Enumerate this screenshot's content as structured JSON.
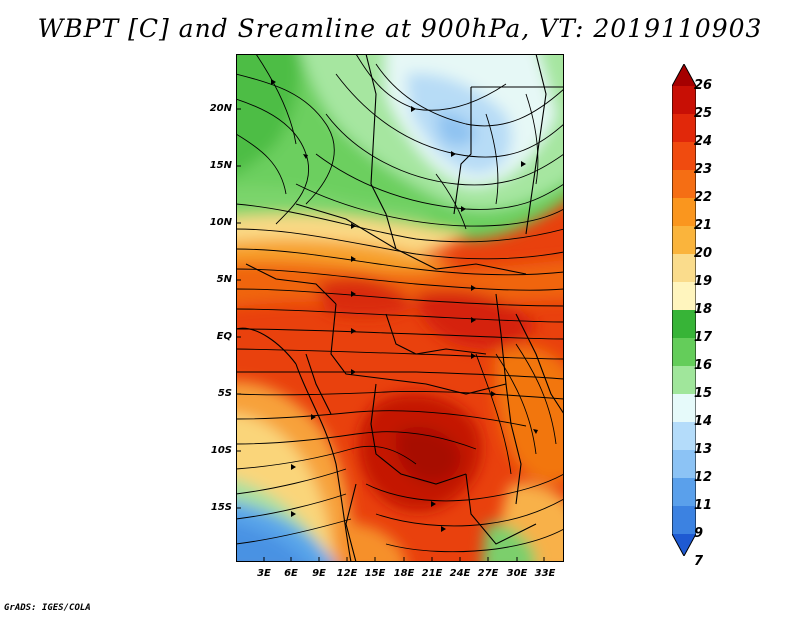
{
  "title": "WBPT [C] and Sreamline at 900hPa, VT: 2019110903",
  "credit": "GrADS: IGES/COLA",
  "lat_labels": [
    "20N",
    "15N",
    "10N",
    "5N",
    "EQ",
    "5S",
    "10S",
    "15S"
  ],
  "lon_labels": [
    "3E",
    "6E",
    "9E",
    "12E",
    "15E",
    "18E",
    "21E",
    "24E",
    "27E",
    "30E",
    "33E"
  ],
  "colorbar": {
    "labels": [
      "26",
      "25",
      "24",
      "23",
      "22",
      "21",
      "20",
      "19",
      "18",
      "17",
      "16",
      "15",
      "14",
      "13",
      "12",
      "11",
      "9",
      "7"
    ],
    "colors": [
      "#a50000",
      "#c80f05",
      "#e1280a",
      "#f04b0f",
      "#f56e14",
      "#fa961e",
      "#fab43c",
      "#fadc8c",
      "#fff5be",
      "#37b437",
      "#64cd5a",
      "#a0e69b",
      "#e6fafa",
      "#b4dcfa",
      "#8cc3f5",
      "#5aa0eb",
      "#3c82e1",
      "#1e5ad2"
    ]
  }
}
